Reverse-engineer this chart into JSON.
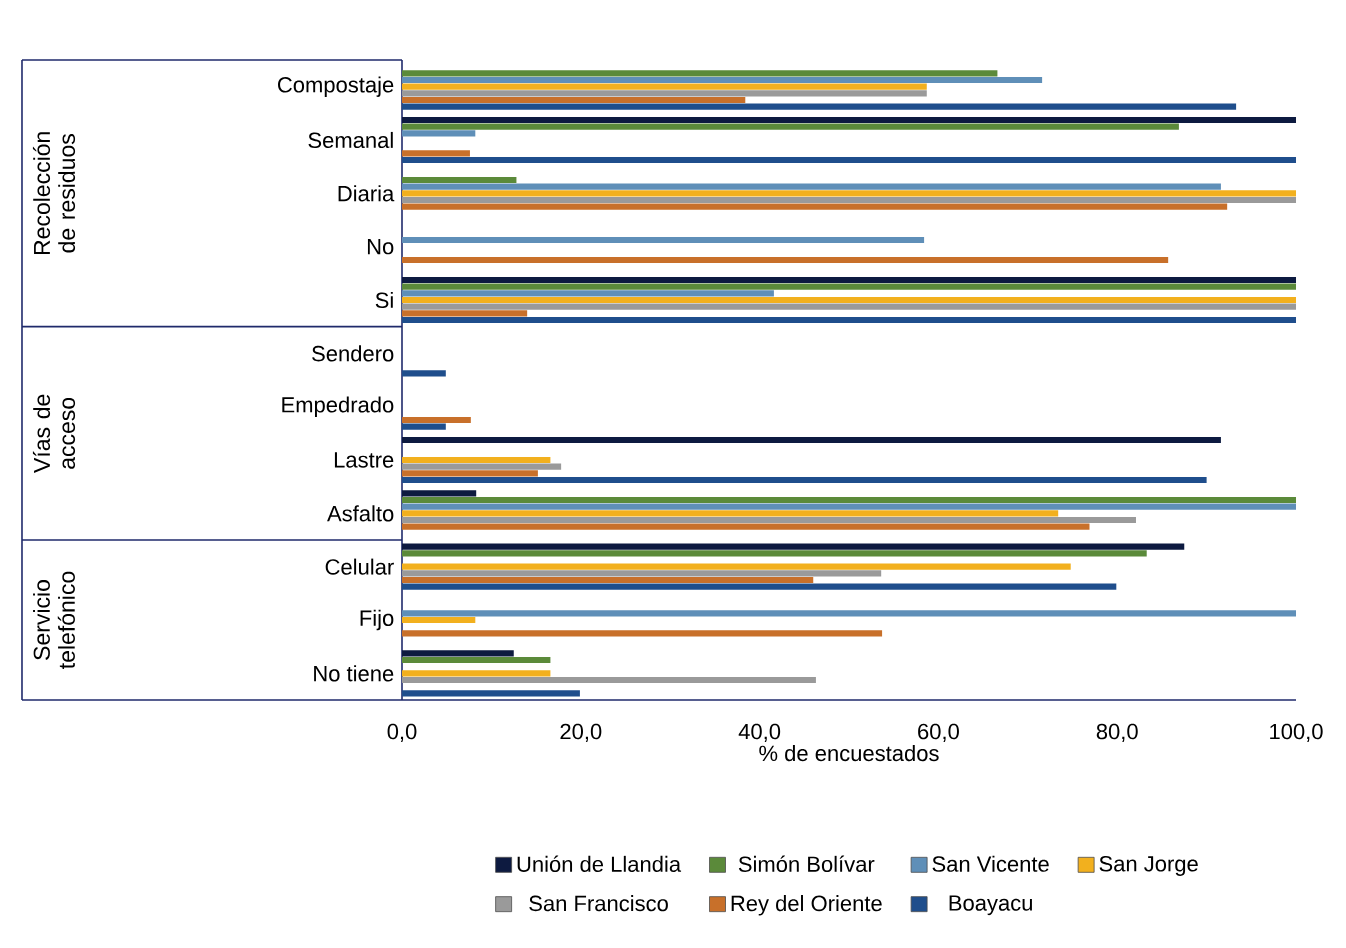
{
  "chart_data": {
    "type": "bar",
    "orientation": "horizontal",
    "categories": [
      "Compostaje",
      "Semanal",
      "Diaria",
      "No",
      "Si",
      "Sendero",
      "Empedrado",
      "Lastre",
      "Asfalto",
      "Celular",
      "Fijo",
      "No tiene"
    ],
    "series": [
      {
        "name": "Unión de Llandia",
        "color": "#0d1a40",
        "values": [
          0,
          100,
          0,
          0,
          100,
          0,
          0,
          91.6,
          8.3,
          87.5,
          0,
          12.5
        ]
      },
      {
        "name": "Simón Bolívar",
        "color": "#5b8a3a",
        "values": [
          66.6,
          86.9,
          12.8,
          0,
          100,
          0,
          0,
          0,
          100,
          83.3,
          0,
          16.6
        ]
      },
      {
        "name": "San Vicente",
        "color": "#5f8fb8",
        "values": [
          71.6,
          8.2,
          91.6,
          58.4,
          41.6,
          0,
          0,
          0,
          100,
          0,
          100,
          0
        ]
      },
      {
        "name": "San Jorge",
        "color": "#f2b01e",
        "values": [
          58.7,
          0,
          100,
          0,
          100,
          0,
          0,
          16.6,
          73.4,
          74.8,
          8.2,
          16.6
        ]
      },
      {
        "name": "San Francisco",
        "color": "#9a9a9a",
        "values": [
          58.7,
          0,
          100,
          0,
          100,
          0,
          0,
          17.8,
          82.1,
          53.6,
          0,
          46.3
        ]
      },
      {
        "name": "Rey del Oriente",
        "color": "#c8702a",
        "values": [
          38.4,
          7.6,
          92.3,
          85.7,
          14.0,
          0,
          7.7,
          15.2,
          76.9,
          46.0,
          53.7,
          0
        ]
      },
      {
        "name": "Boayacu",
        "color": "#1f4e8c",
        "values": [
          93.3,
          100,
          0,
          0,
          100,
          4.9,
          4.9,
          90.0,
          0,
          79.9,
          0,
          19.9
        ]
      }
    ],
    "xlim": [
      0,
      100
    ],
    "xticks": [
      {
        "value": 0,
        "label": "0,0"
      },
      {
        "value": 20,
        "label": "20,0"
      },
      {
        "value": 40,
        "label": "40,0"
      },
      {
        "value": 60,
        "label": "60,0"
      },
      {
        "value": 80,
        "label": "80,0"
      },
      {
        "value": 100,
        "label": "100,0"
      }
    ],
    "xlabel": "% de encuestados",
    "annotations": [
      "Recolección de residuos",
      "Vías de acceso",
      "Servicio telefónico"
    ],
    "grid": false,
    "legend": "bottom"
  }
}
